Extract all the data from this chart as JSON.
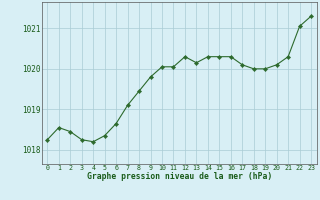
{
  "x": [
    0,
    1,
    2,
    3,
    4,
    5,
    6,
    7,
    8,
    9,
    10,
    11,
    12,
    13,
    14,
    15,
    16,
    17,
    18,
    19,
    20,
    21,
    22,
    23
  ],
  "y": [
    1018.25,
    1018.55,
    1018.45,
    1018.25,
    1018.2,
    1018.35,
    1018.65,
    1019.1,
    1019.45,
    1019.8,
    1020.05,
    1020.05,
    1020.3,
    1020.15,
    1020.3,
    1020.3,
    1020.3,
    1020.1,
    1020.0,
    1020.0,
    1020.1,
    1020.3,
    1021.05,
    1021.3
  ],
  "line_color": "#2d6a2d",
  "marker_color": "#2d6a2d",
  "bg_color": "#d8eff5",
  "grid_color": "#aaccd4",
  "xlabel": "Graphe pression niveau de la mer (hPa)",
  "xlabel_color": "#1a5c1a",
  "tick_color": "#1a5c1a",
  "yticks": [
    1018,
    1019,
    1020,
    1021
  ],
  "ylim": [
    1017.65,
    1021.65
  ],
  "xlim": [
    -0.5,
    23.5
  ],
  "xticks": [
    0,
    1,
    2,
    3,
    4,
    5,
    6,
    7,
    8,
    9,
    10,
    11,
    12,
    13,
    14,
    15,
    16,
    17,
    18,
    19,
    20,
    21,
    22,
    23
  ]
}
